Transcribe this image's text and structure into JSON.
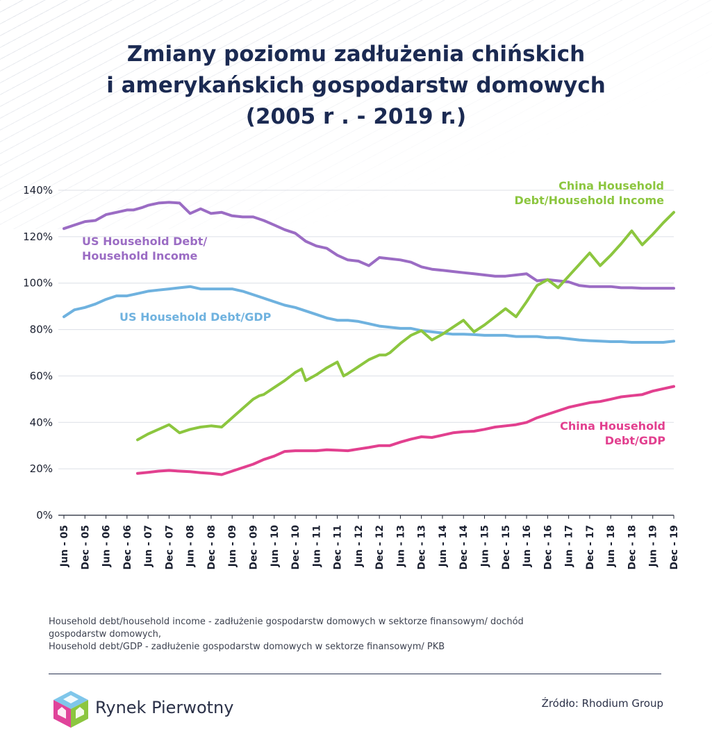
{
  "title": {
    "line1": "Zmiany poziomu zadłużenia chińskich",
    "line2": "i amerykańskich gospodarstw domowych",
    "line3": "(2005 r . - 2019 r.)"
  },
  "chart_data": {
    "type": "line",
    "y_ticks": [
      "0%",
      "20%",
      "40%",
      "60%",
      "80%",
      "100%",
      "120%",
      "140%"
    ],
    "ylim": [
      0,
      140
    ],
    "grid": true,
    "x_ticks": [
      "Jun - 05",
      "Dec - 05",
      "Jun - 06",
      "Dec - 06",
      "Jun - 07",
      "Dec - 07",
      "Jun - 08",
      "Dec - 08",
      "Jun - 09",
      "Dec - 09",
      "Jun - 10",
      "Dec - 10",
      "Jun - 11",
      "Dec - 11",
      "Jun - 12",
      "Dec - 12",
      "Jun - 13",
      "Dec - 13",
      "Jun - 14",
      "Dec - 14",
      "Jun - 15",
      "Dec - 15",
      "Jun - 16",
      "Dec - 16",
      "Jun - 17",
      "Dec - 17",
      "Jun - 18",
      "Dec - 18",
      "Jun - 19",
      "Dec - 19"
    ],
    "series": [
      {
        "name": "US Household Debt/ Household Income",
        "label_lines": [
          "US Household Debt/",
          "Household Income"
        ],
        "color": "#9b6cc4",
        "x": [
          0,
          0.5,
          1,
          1.5,
          2,
          2.5,
          3,
          3.3,
          3.7,
          4,
          4.5,
          5,
          5.5,
          6,
          6.5,
          7,
          7.5,
          8,
          8.5,
          9,
          9.5,
          10,
          10.5,
          11,
          11.5,
          12,
          12.5,
          13,
          13.5,
          14,
          14.5,
          15,
          15.5,
          16,
          16.5,
          17,
          17.5,
          18,
          18.5,
          19,
          19.5,
          20,
          20.5,
          21,
          21.5,
          22,
          22.5,
          23,
          23.5,
          24,
          24.5,
          25,
          25.5,
          26,
          26.5,
          27,
          27.5,
          28,
          28.5,
          29
        ],
        "values": [
          123.5,
          125,
          126.5,
          127,
          129.5,
          130.5,
          131.5,
          131.5,
          132.5,
          133.5,
          134.5,
          134.8,
          134.5,
          130,
          132,
          130,
          130.5,
          129,
          128.5,
          128.5,
          127,
          125,
          123,
          121.5,
          118,
          116,
          115,
          112,
          110,
          109.5,
          107.5,
          111,
          110.5,
          110,
          109,
          107,
          106,
          105.5,
          105,
          104.5,
          104,
          103.5,
          103,
          103,
          103.5,
          104,
          101,
          101.5,
          101,
          100.5,
          99,
          98.5,
          98.5,
          98.5,
          98,
          98,
          97.8,
          97.8,
          97.8,
          97.8
        ]
      },
      {
        "name": "US Household Debt/GDP",
        "label_lines": [
          "US Household Debt/GDP"
        ],
        "color": "#6fb2df",
        "x": [
          0,
          0.5,
          1,
          1.5,
          2,
          2.5,
          3,
          3.5,
          4,
          4.5,
          5,
          5.5,
          6,
          6.5,
          7,
          7.5,
          8,
          8.5,
          9,
          9.5,
          10,
          10.5,
          11,
          11.5,
          12,
          12.5,
          13,
          13.5,
          14,
          14.5,
          15,
          15.5,
          16,
          16.5,
          17,
          17.5,
          18,
          18.5,
          19,
          19.5,
          20,
          20.5,
          21,
          21.5,
          22,
          22.5,
          23,
          23.5,
          24,
          24.5,
          25,
          25.5,
          26,
          26.5,
          27,
          27.5,
          28,
          28.5,
          29
        ],
        "values": [
          85.5,
          88.5,
          89.5,
          91,
          93,
          94.5,
          94.5,
          95.5,
          96.5,
          97,
          97.5,
          98,
          98.5,
          97.5,
          97.5,
          97.5,
          97.5,
          96.5,
          95,
          93.5,
          92,
          90.5,
          89.5,
          88,
          86.5,
          85,
          84,
          84,
          83.5,
          82.5,
          81.5,
          81,
          80.5,
          80.5,
          79.5,
          79,
          78.5,
          78,
          78,
          77.8,
          77.5,
          77.5,
          77.5,
          77,
          77,
          77,
          76.5,
          76.5,
          76,
          75.5,
          75.2,
          75,
          74.8,
          74.8,
          74.5,
          74.5,
          74.5,
          74.5,
          75
        ]
      },
      {
        "name": "China Household Debt/Household Income",
        "label_lines": [
          "China Household",
          "Debt/Household Income"
        ],
        "color": "#8cc63f",
        "x": [
          3.5,
          4,
          4.5,
          5,
          5.5,
          6,
          6.5,
          7,
          7.5,
          8,
          8.5,
          9,
          9.3,
          9.5,
          10,
          10.5,
          11,
          11.3,
          11.5,
          12,
          12.5,
          13,
          13.3,
          13.5,
          14,
          14.5,
          15,
          15.3,
          15.5,
          16,
          16.5,
          17,
          17.5,
          18,
          18.5,
          19,
          19.5,
          20,
          20.5,
          21,
          21.5,
          22,
          22.5,
          23,
          23.5,
          24,
          24.5,
          25,
          25.5,
          26,
          26.5,
          27,
          27.5,
          28,
          28.5,
          29
        ],
        "values": [
          32.5,
          35,
          37,
          39,
          35.5,
          37,
          38,
          38.5,
          38,
          42,
          46,
          50,
          51.5,
          52,
          55,
          58,
          61.5,
          63,
          58,
          60.5,
          63.5,
          66,
          60,
          61,
          64,
          67,
          69,
          69,
          70,
          74,
          77.5,
          79.5,
          75.5,
          78,
          81,
          84,
          79,
          82,
          85.5,
          89,
          85.5,
          92,
          99,
          101.5,
          98,
          103,
          108,
          113,
          107.5,
          112,
          117,
          122.5,
          116.5,
          121,
          126,
          130.5
        ]
      },
      {
        "name": "China Household Debt/GDP",
        "label_lines": [
          "China Household",
          "Debt/GDP"
        ],
        "color": "#e2408f",
        "x": [
          3.5,
          4,
          4.5,
          5,
          5.5,
          6,
          6.5,
          7,
          7.5,
          8,
          8.5,
          9,
          9.5,
          10,
          10.5,
          11,
          11.5,
          12,
          12.5,
          13,
          13.5,
          14,
          14.5,
          15,
          15.5,
          16,
          16.5,
          17,
          17.5,
          18,
          18.5,
          19,
          19.5,
          20,
          20.5,
          21,
          21.5,
          22,
          22.5,
          23,
          23.5,
          24,
          24.5,
          25,
          25.5,
          26,
          26.5,
          27,
          27.5,
          28,
          28.5,
          29
        ],
        "values": [
          18,
          18.5,
          19,
          19.3,
          19,
          18.8,
          18.3,
          18,
          17.5,
          19,
          20.5,
          22,
          24,
          25.5,
          27.5,
          27.8,
          27.8,
          27.8,
          28.2,
          28,
          27.8,
          28.5,
          29.2,
          30,
          30,
          31.5,
          32.8,
          33.8,
          33.5,
          34.5,
          35.5,
          36,
          36.2,
          37,
          38,
          38.5,
          39,
          40,
          42,
          43.5,
          45,
          46.5,
          47.5,
          48.5,
          49,
          50,
          51,
          51.5,
          52,
          53.5,
          54.5,
          55.5
        ]
      }
    ]
  },
  "notes": {
    "line1": "Household debt/household income - zadłużenie gospodarstw domowych w sektorze finansowym/ dochód",
    "line2": "gospodarstw domowych,",
    "line3": "Household debt/GDP - zadłużenie gospodarstw domowych w sektorze finansowym/ PKB"
  },
  "footer": {
    "brand": "Rynek Pierwotny",
    "source": "Źródło: Rhodium Group"
  },
  "colors": {
    "title": "#1b2a52",
    "grid": "#dcdfe6",
    "axis": "#1b2030"
  },
  "icons": {
    "logo": "house-cube-logo"
  }
}
